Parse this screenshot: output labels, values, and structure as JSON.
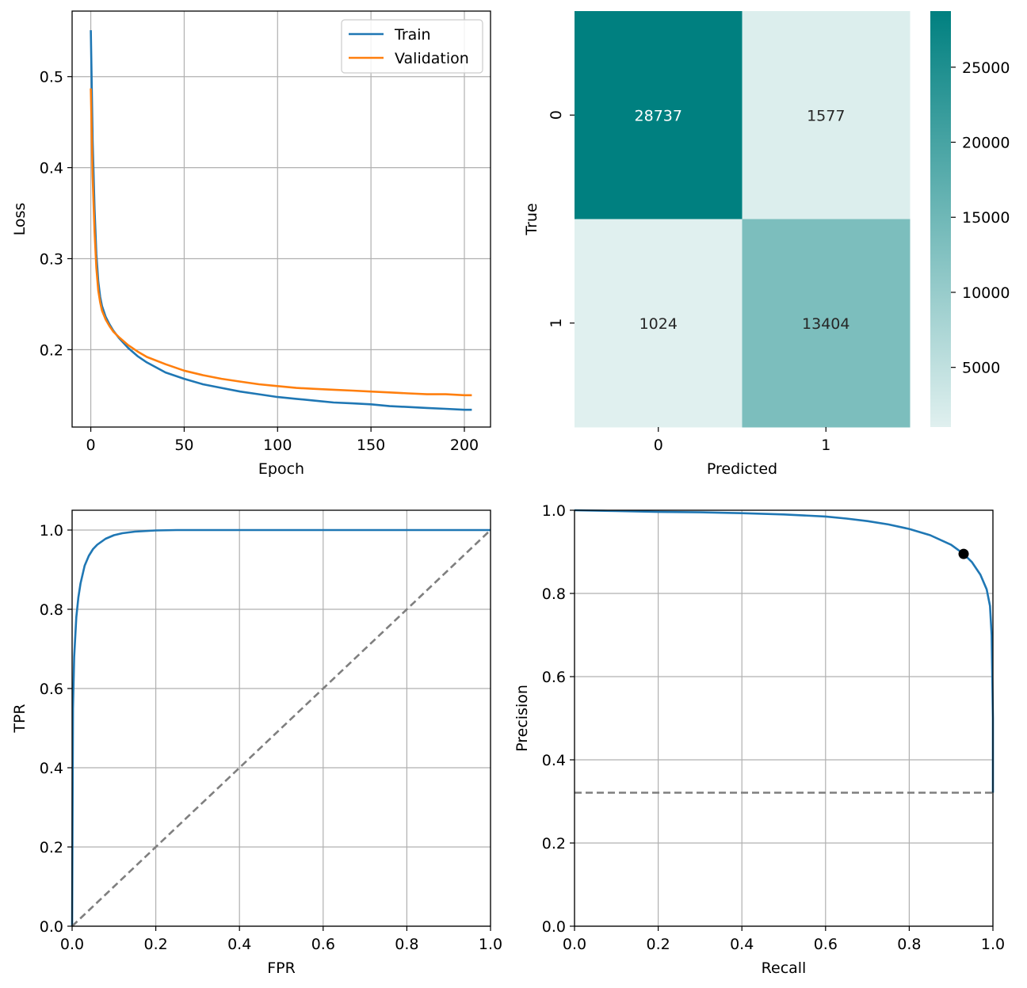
{
  "chart_data": [
    {
      "id": "loss",
      "type": "line",
      "xlabel": "Epoch",
      "ylabel": "Loss",
      "xlim": [
        -10,
        214
      ],
      "ylim": [
        0.115,
        0.572
      ],
      "xticks": [
        0,
        50,
        100,
        150,
        200
      ],
      "yticks": [
        0.2,
        0.3,
        0.4,
        0.5
      ],
      "grid": true,
      "legend": {
        "placement": "top-right",
        "entries": [
          "Train",
          "Validation"
        ]
      },
      "series": [
        {
          "name": "Train",
          "color": "#1f77b4",
          "x": [
            0,
            1,
            2,
            3,
            4,
            5,
            6,
            8,
            10,
            12,
            15,
            20,
            25,
            30,
            40,
            50,
            60,
            70,
            80,
            90,
            100,
            110,
            120,
            130,
            140,
            150,
            160,
            170,
            180,
            190,
            200,
            204
          ],
          "y": [
            0.551,
            0.43,
            0.355,
            0.305,
            0.275,
            0.258,
            0.248,
            0.236,
            0.228,
            0.221,
            0.213,
            0.202,
            0.193,
            0.186,
            0.175,
            0.168,
            0.162,
            0.158,
            0.154,
            0.151,
            0.148,
            0.146,
            0.144,
            0.142,
            0.141,
            0.14,
            0.138,
            0.137,
            0.136,
            0.135,
            0.134,
            0.134
          ]
        },
        {
          "name": "Validation",
          "color": "#ff7f0e",
          "x": [
            0,
            1,
            2,
            3,
            4,
            5,
            6,
            8,
            10,
            12,
            15,
            20,
            25,
            30,
            40,
            50,
            60,
            70,
            80,
            90,
            100,
            110,
            120,
            130,
            140,
            150,
            160,
            170,
            180,
            190,
            200,
            204
          ],
          "y": [
            0.487,
            0.39,
            0.33,
            0.29,
            0.265,
            0.252,
            0.243,
            0.233,
            0.226,
            0.22,
            0.214,
            0.205,
            0.198,
            0.192,
            0.184,
            0.177,
            0.172,
            0.168,
            0.165,
            0.162,
            0.16,
            0.158,
            0.157,
            0.156,
            0.155,
            0.154,
            0.153,
            0.152,
            0.151,
            0.151,
            0.15,
            0.15
          ]
        }
      ]
    },
    {
      "id": "confusion",
      "type": "heatmap",
      "xlabel": "Predicted",
      "ylabel": "True",
      "x_categories": [
        "0",
        "1"
      ],
      "y_categories": [
        "0",
        "1"
      ],
      "values": [
        [
          28737,
          1577
        ],
        [
          1024,
          13404
        ]
      ],
      "value_labels": [
        [
          "28737",
          "1577"
        ],
        [
          "1024",
          "13404"
        ]
      ],
      "colormap": {
        "low": "#e0f0ef",
        "high": "#008080"
      },
      "colorbar": {
        "ticks": [
          5000,
          10000,
          15000,
          20000,
          25000
        ],
        "tick_labels": [
          "5000",
          "10000",
          "15000",
          "20000",
          "25000"
        ],
        "range": [
          1024,
          28737
        ]
      }
    },
    {
      "id": "roc",
      "type": "line",
      "xlabel": "FPR",
      "ylabel": "TPR",
      "xlim": [
        0,
        1
      ],
      "ylim": [
        0,
        1.05
      ],
      "xticks": [
        0.0,
        0.2,
        0.4,
        0.6,
        0.8,
        1.0
      ],
      "yticks": [
        0.0,
        0.2,
        0.4,
        0.6,
        0.8,
        1.0
      ],
      "xtick_labels": [
        "0.0",
        "0.2",
        "0.4",
        "0.6",
        "0.8",
        "1.0"
      ],
      "ytick_labels": [
        "0.0",
        "0.2",
        "0.4",
        "0.6",
        "0.8",
        "1.0"
      ],
      "grid": true,
      "series": [
        {
          "color": "#1f77b4",
          "x": [
            0.0,
            0.002,
            0.005,
            0.01,
            0.015,
            0.02,
            0.03,
            0.04,
            0.05,
            0.06,
            0.08,
            0.1,
            0.12,
            0.15,
            0.2,
            0.25,
            0.3,
            0.5,
            1.0
          ],
          "y": [
            0.0,
            0.55,
            0.68,
            0.78,
            0.83,
            0.865,
            0.91,
            0.935,
            0.952,
            0.963,
            0.978,
            0.987,
            0.992,
            0.996,
            0.999,
            1.0,
            1.0,
            1.0,
            1.0
          ]
        },
        {
          "color": "#7f7f7f",
          "dashed": true,
          "x": [
            0,
            1
          ],
          "y": [
            0,
            1
          ]
        }
      ]
    },
    {
      "id": "pr",
      "type": "line",
      "xlabel": "Recall",
      "ylabel": "Precision",
      "xlim": [
        0,
        1
      ],
      "ylim": [
        0,
        1
      ],
      "xticks": [
        0.0,
        0.2,
        0.4,
        0.6,
        0.8,
        1.0
      ],
      "yticks": [
        0.0,
        0.2,
        0.4,
        0.6,
        0.8,
        1.0
      ],
      "xtick_labels": [
        "0.0",
        "0.2",
        "0.4",
        "0.6",
        "0.8",
        "1.0"
      ],
      "ytick_labels": [
        "0.0",
        "0.2",
        "0.4",
        "0.6",
        "0.8",
        "1.0"
      ],
      "grid": true,
      "series": [
        {
          "color": "#1f77b4",
          "x": [
            0.0,
            0.1,
            0.2,
            0.3,
            0.4,
            0.5,
            0.6,
            0.65,
            0.7,
            0.75,
            0.8,
            0.85,
            0.9,
            0.93,
            0.95,
            0.97,
            0.985,
            0.993,
            0.997,
            1.0,
            1.0
          ],
          "y": [
            1.0,
            0.998,
            0.996,
            0.995,
            0.993,
            0.99,
            0.985,
            0.98,
            0.974,
            0.966,
            0.955,
            0.94,
            0.917,
            0.895,
            0.875,
            0.845,
            0.81,
            0.77,
            0.7,
            0.5,
            0.321
          ]
        },
        {
          "color": "#7f7f7f",
          "dashed": true,
          "x": [
            0,
            1
          ],
          "y": [
            0.321,
            0.321
          ]
        }
      ],
      "points": [
        {
          "x": 0.93,
          "y": 0.895,
          "color": "#000000"
        }
      ]
    }
  ]
}
